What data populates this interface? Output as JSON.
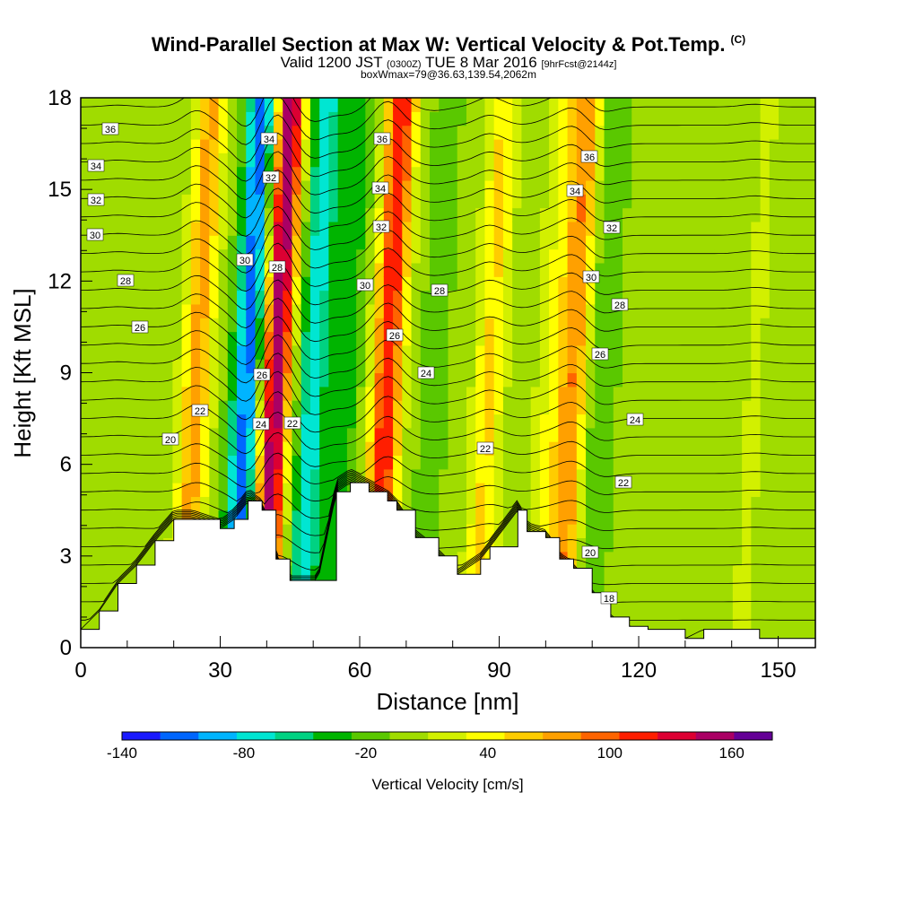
{
  "title": {
    "main": "Wind-Parallel Section at Max W: Vertical Velocity & Pot.Temp.",
    "copyright": "(C)",
    "valid_prefix": "Valid 1200 JST",
    "valid_utc": "(0300Z)",
    "valid_date": "TUE 8 Mar 2016",
    "forecast": "[9hrFcst@2144z]",
    "boxwmax": "boxWmax=79@36.63,139.54,2062m"
  },
  "chart_data": {
    "type": "heatmap",
    "xlabel": "Distance [nm]",
    "ylabel": "Height [Kft MSL]",
    "xlim": [
      0,
      158
    ],
    "ylim": [
      0,
      18
    ],
    "x_ticks": [
      "0",
      "30",
      "60",
      "90",
      "120",
      "150"
    ],
    "y_ticks": [
      "0",
      "3",
      "6",
      "9",
      "12",
      "15",
      "18"
    ],
    "colorbar": {
      "label": "Vertical Velocity [cm/s]",
      "tick_labels": [
        "-140",
        "-80",
        "-20",
        "40",
        "100",
        "160"
      ],
      "levels": [
        -140,
        -120,
        -100,
        -80,
        -60,
        -40,
        -20,
        0,
        20,
        40,
        60,
        80,
        100,
        120,
        140,
        160,
        180
      ],
      "colors": [
        "#1a1aff",
        "#0066ff",
        "#00b4ff",
        "#00e6d2",
        "#00d282",
        "#00b400",
        "#5ac800",
        "#a0dc00",
        "#d2f000",
        "#ffff00",
        "#ffcc00",
        "#ffa000",
        "#ff6400",
        "#ff1e00",
        "#dc0032",
        "#aa0064",
        "#640096"
      ]
    },
    "contour_field": "Potential temperature",
    "contour_labels": [
      "36",
      "34",
      "32",
      "30",
      "28",
      "26",
      "22",
      "20",
      "34",
      "32",
      "30",
      "28",
      "26",
      "24",
      "22",
      "36",
      "34",
      "32",
      "30",
      "26",
      "24",
      "28",
      "22",
      "36",
      "34",
      "32",
      "30",
      "28",
      "26",
      "24",
      "22",
      "20",
      "18"
    ],
    "velocity_features": [
      {
        "x": 8,
        "peak": 10
      },
      {
        "x": 25,
        "peak": 80
      },
      {
        "x": 36,
        "peak": -120
      },
      {
        "x": 42,
        "peak": 170
      },
      {
        "x": 50,
        "peak": -80
      },
      {
        "x": 57,
        "peak": -40
      },
      {
        "x": 66,
        "peak": 130
      },
      {
        "x": 76,
        "peak": -20
      },
      {
        "x": 88,
        "peak": 55
      },
      {
        "x": 101,
        "peak": 30
      },
      {
        "x": 106,
        "peak": 90
      },
      {
        "x": 112,
        "peak": -30
      },
      {
        "x": 145,
        "peak": 15
      }
    ],
    "terrain_kft": [
      [
        0,
        0.6
      ],
      [
        4,
        1.2
      ],
      [
        8,
        2.1
      ],
      [
        12,
        2.7
      ],
      [
        16,
        3.5
      ],
      [
        20,
        4.2
      ],
      [
        24,
        4.2
      ],
      [
        30,
        3.9
      ],
      [
        33,
        4.2
      ],
      [
        36,
        4.8
      ],
      [
        39,
        4.5
      ],
      [
        42,
        2.9
      ],
      [
        45,
        2.2
      ],
      [
        51,
        2.2
      ],
      [
        55,
        5.1
      ],
      [
        58,
        5.4
      ],
      [
        62,
        5.1
      ],
      [
        66,
        4.8
      ],
      [
        68,
        4.5
      ],
      [
        72,
        3.6
      ],
      [
        77,
        3.0
      ],
      [
        81,
        2.4
      ],
      [
        86,
        2.9
      ],
      [
        88,
        3.3
      ],
      [
        94,
        4.5
      ],
      [
        96,
        3.8
      ],
      [
        100,
        3.6
      ],
      [
        103,
        2.9
      ],
      [
        106,
        2.6
      ],
      [
        110,
        1.8
      ],
      [
        114,
        1.0
      ],
      [
        118,
        0.7
      ],
      [
        122,
        0.6
      ],
      [
        130,
        0.3
      ],
      [
        134,
        0.6
      ],
      [
        146,
        0.3
      ],
      [
        158,
        0.3
      ]
    ]
  }
}
